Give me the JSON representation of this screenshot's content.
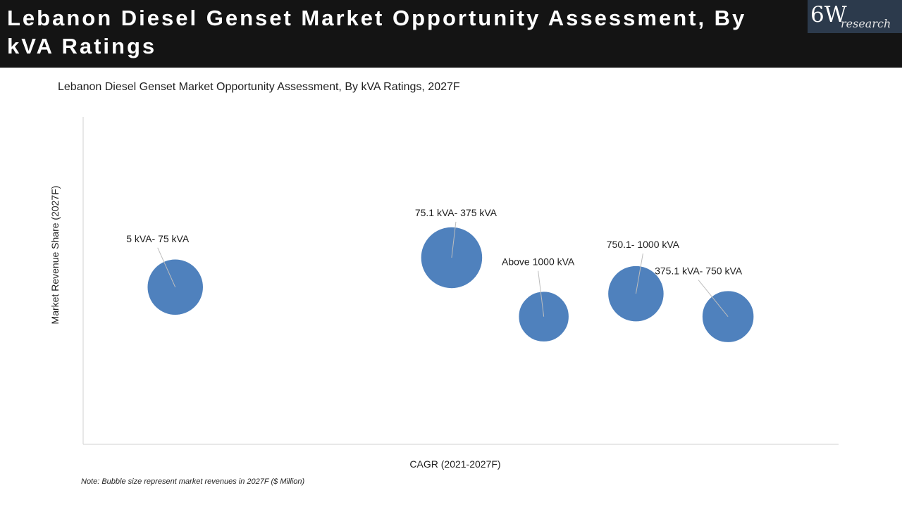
{
  "header": {
    "title": "Lebanon Diesel Genset Market Opportunity Assessment, By kVA Ratings",
    "logo_main": "6W",
    "logo_sub": "research"
  },
  "chart_data": {
    "type": "scatter",
    "title": "Lebanon Diesel Genset Market Opportunity Assessment, By kVA Ratings, 2027F",
    "xlabel": "CAGR (2021-2027F)",
    "ylabel": "Market Revenue Share (2027F)",
    "grid": false,
    "legend": "none",
    "note": "Note: Bubble size represent market revenues in 2027F ($ Million)",
    "series": [
      {
        "name": "5 kVA- 75 kVA",
        "x": 1,
        "y": 2.4,
        "size": 40
      },
      {
        "name": "75.1 kVA- 375 kVA",
        "x": 4,
        "y": 2.85,
        "size": 44
      },
      {
        "name": "Above 1000 kVA",
        "x": 5,
        "y": 1.95,
        "size": 36
      },
      {
        "name": "750.1- 1000 kVA",
        "x": 6,
        "y": 2.3,
        "size": 40
      },
      {
        "name": "375.1 kVA- 750 kVA",
        "x": 7,
        "y": 1.95,
        "size": 37
      }
    ]
  },
  "colors": {
    "bubble": "#4f81bd",
    "axis": "#d0d0d0",
    "leader": "#bdbdbd"
  }
}
